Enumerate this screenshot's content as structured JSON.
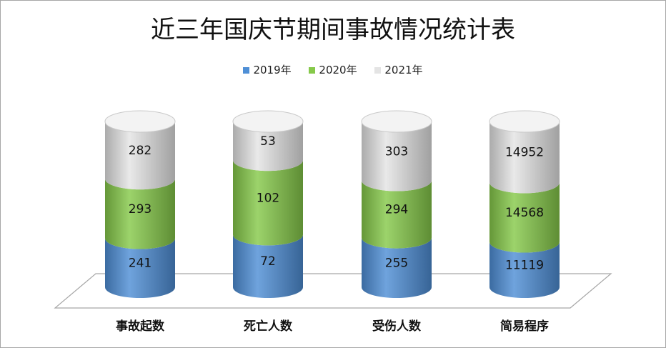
{
  "title": "近三年国庆节期间事故情况统计表",
  "legend": [
    {
      "name": "2019年",
      "color": "#4f8fd6"
    },
    {
      "name": "2020年",
      "color": "#86c94a"
    },
    {
      "name": "2021年",
      "color": "#e4e4e4"
    }
  ],
  "chart_data": {
    "type": "bar",
    "stacked": true,
    "shape": "3d-cylinder",
    "title": "近三年国庆节期间事故情况统计表",
    "categories": [
      "事故起数",
      "死亡人数",
      "受伤人数",
      "简易程序"
    ],
    "series": [
      {
        "name": "2019年",
        "values": [
          241,
          72,
          255,
          11119
        ],
        "color": "#4f8fd6"
      },
      {
        "name": "2020年",
        "values": [
          293,
          102,
          294,
          14568
        ],
        "color": "#86c94a"
      },
      {
        "name": "2021年",
        "values": [
          282,
          53,
          303,
          14952
        ],
        "color": "#e4e4e4"
      }
    ],
    "normalized": true,
    "grid": false,
    "legend_position": "top"
  }
}
